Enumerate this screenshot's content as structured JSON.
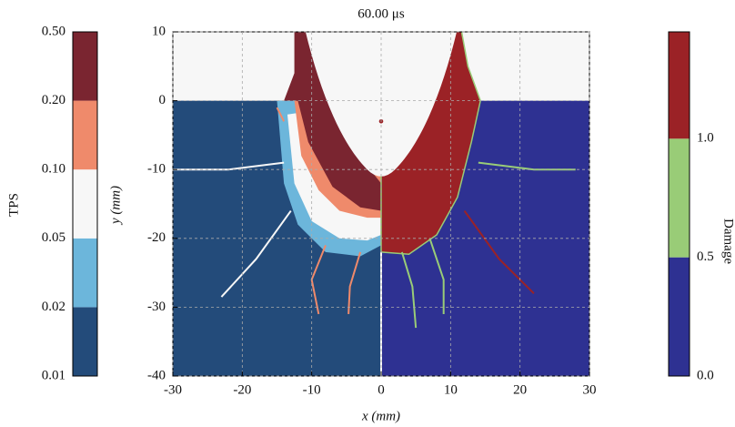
{
  "chart_data": {
    "type": "field",
    "title": "60.00 μs",
    "x_label": "x (mm)",
    "y_label": "y (mm)",
    "xlim": [
      -30,
      30
    ],
    "xticks": [
      -30,
      -20,
      -10,
      0,
      10,
      20,
      30
    ],
    "ylim": [
      -40,
      10
    ],
    "yticks": [
      -40,
      -30,
      -20,
      -10,
      0,
      10
    ],
    "grid": true,
    "colorbars": [
      {
        "label": "TPS",
        "ticks": [
          0.01,
          0.02,
          0.05,
          {
            "value": 0.1,
            "label": "0.10"
          },
          {
            "value": 0.2,
            "label": "0.20"
          },
          {
            "value": 0.5,
            "label": "0.50"
          }
        ],
        "colors": [
          "#234b7a",
          "#6cb6db",
          "#f7f7f7",
          "#ef8a6b",
          "#7a2530"
        ]
      },
      {
        "label": "Damage",
        "lim": [
          0,
          1.45
        ],
        "ticks": [
          {
            "value": 0,
            "label": "0.0"
          },
          0.5,
          {
            "value": 1,
            "label": "1.0"
          }
        ],
        "colors": [
          "#2e3192",
          "#99cc77",
          "#9b2226"
        ]
      }
    ]
  }
}
